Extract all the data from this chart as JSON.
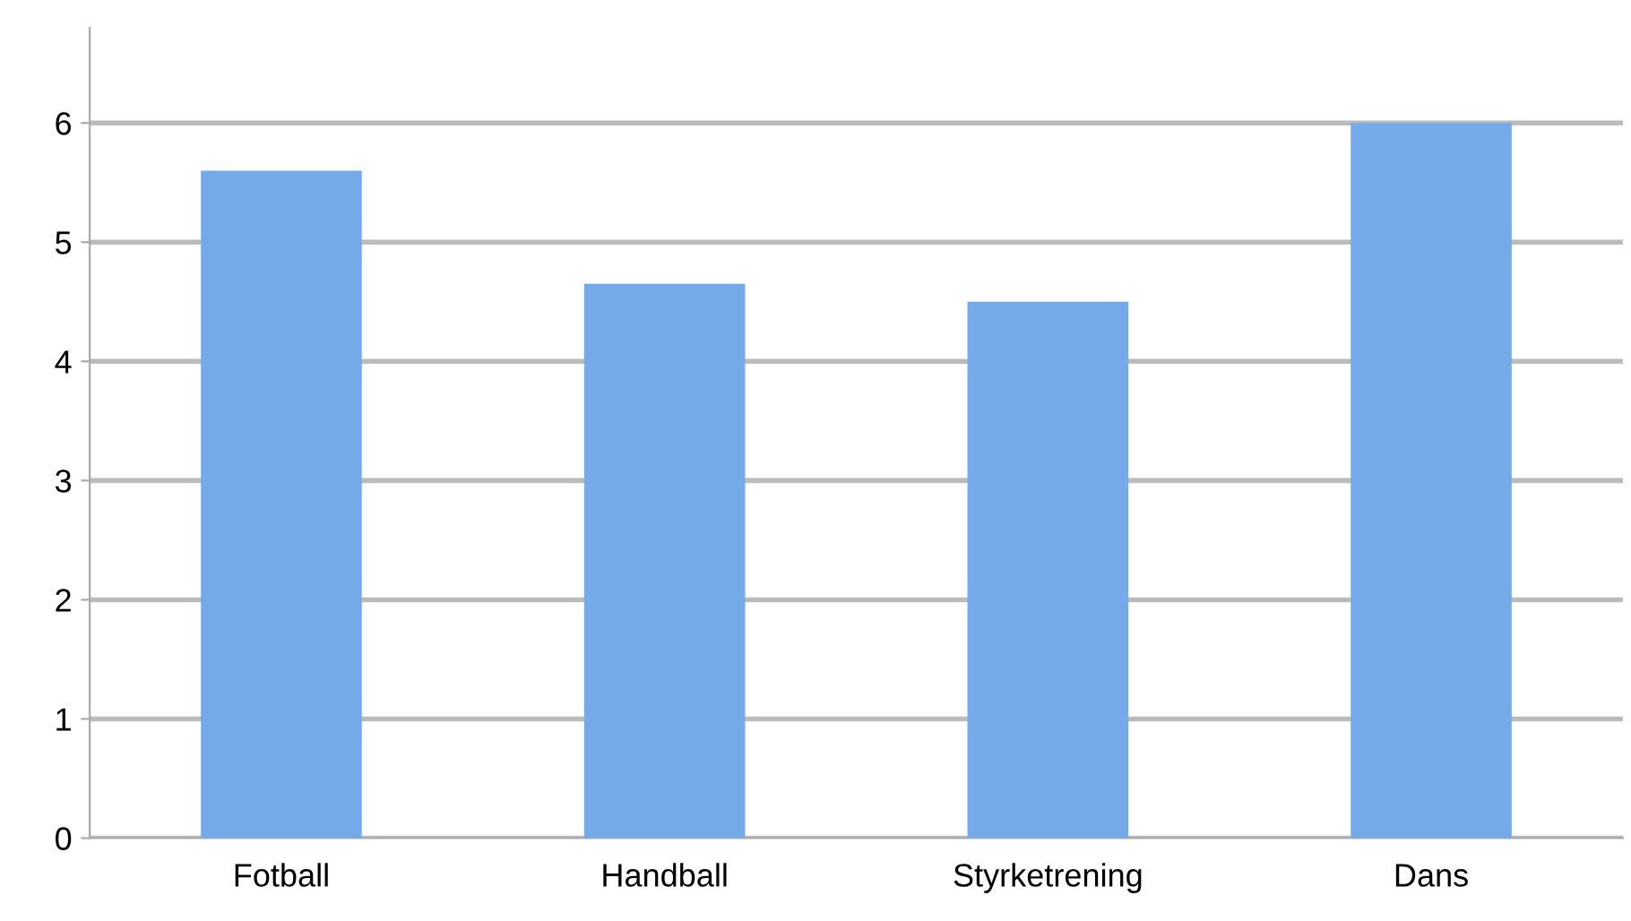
{
  "chart_data": {
    "type": "bar",
    "categories": [
      "Fotball",
      "Handball",
      "Styrketrening",
      "Dans"
    ],
    "values": [
      5.6,
      4.65,
      4.5,
      6.0
    ],
    "color": "#75aaea",
    "ylim": [
      0,
      6.8
    ],
    "yticks": [
      0,
      1,
      2,
      3,
      4,
      5,
      6
    ],
    "grid": "y"
  }
}
